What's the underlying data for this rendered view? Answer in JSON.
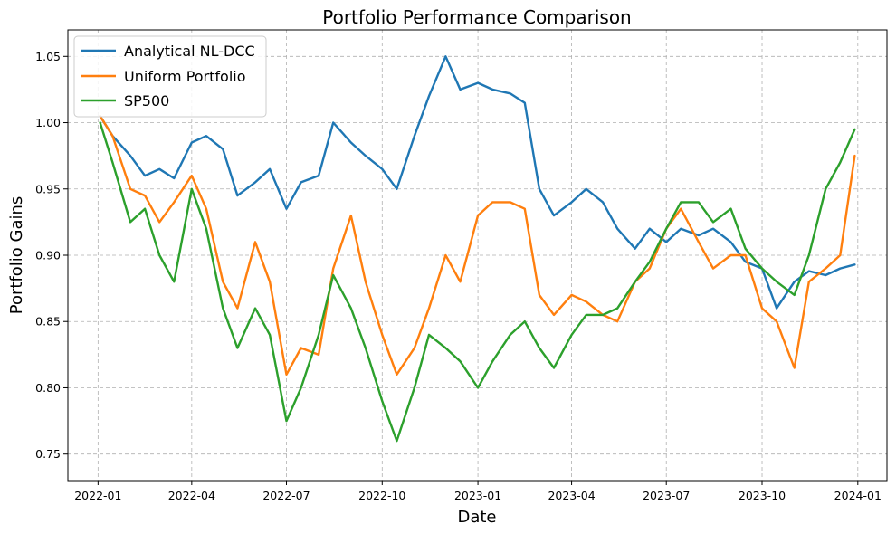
{
  "chart_data": {
    "type": "line",
    "title": "Portfolio Performance Comparison",
    "xlabel": "Date",
    "ylabel": "Portfolio Gains",
    "xlim": [
      "2021-12-03",
      "2024-01-29"
    ],
    "ylim": [
      0.73,
      1.07
    ],
    "grid": true,
    "legend_position": "top-left",
    "x_ticks": [
      "2022-01",
      "2022-04",
      "2022-07",
      "2022-10",
      "2023-01",
      "2023-04",
      "2023-07",
      "2023-10",
      "2024-01"
    ],
    "y_ticks": [
      "0.75",
      "0.80",
      "0.85",
      "0.90",
      "0.95",
      "1.00",
      "1.05"
    ],
    "series": [
      {
        "name": "Analytical NL-DCC",
        "color": "#1f77b4",
        "x": [
          "2022-01-03",
          "2022-01-15",
          "2022-02-01",
          "2022-02-15",
          "2022-03-01",
          "2022-03-15",
          "2022-04-01",
          "2022-04-15",
          "2022-05-01",
          "2022-05-15",
          "2022-06-01",
          "2022-06-15",
          "2022-07-01",
          "2022-07-15",
          "2022-08-01",
          "2022-08-15",
          "2022-09-01",
          "2022-09-15",
          "2022-10-01",
          "2022-10-15",
          "2022-11-01",
          "2022-11-15",
          "2022-12-01",
          "2022-12-15",
          "2023-01-01",
          "2023-01-15",
          "2023-02-01",
          "2023-02-15",
          "2023-03-01",
          "2023-03-15",
          "2023-04-01",
          "2023-04-15",
          "2023-05-01",
          "2023-05-15",
          "2023-06-01",
          "2023-06-15",
          "2023-07-01",
          "2023-07-15",
          "2023-08-01",
          "2023-08-15",
          "2023-09-01",
          "2023-09-15",
          "2023-10-01",
          "2023-10-15",
          "2023-11-01",
          "2023-11-15",
          "2023-12-01",
          "2023-12-15",
          "2023-12-29"
        ],
        "values": [
          1.005,
          0.99,
          0.975,
          0.96,
          0.965,
          0.958,
          0.985,
          0.99,
          0.98,
          0.945,
          0.955,
          0.965,
          0.935,
          0.955,
          0.96,
          1.0,
          0.985,
          0.975,
          0.965,
          0.95,
          0.99,
          1.02,
          1.05,
          1.025,
          1.03,
          1.025,
          1.022,
          1.015,
          0.95,
          0.93,
          0.94,
          0.95,
          0.94,
          0.92,
          0.905,
          0.92,
          0.91,
          0.92,
          0.915,
          0.92,
          0.91,
          0.895,
          0.89,
          0.86,
          0.88,
          0.888,
          0.885,
          0.89,
          0.893
        ]
      },
      {
        "name": "Uniform Portfolio",
        "color": "#ff7f0e",
        "x": [
          "2022-01-03",
          "2022-01-15",
          "2022-02-01",
          "2022-02-15",
          "2022-03-01",
          "2022-03-15",
          "2022-04-01",
          "2022-04-15",
          "2022-05-01",
          "2022-05-15",
          "2022-06-01",
          "2022-06-15",
          "2022-07-01",
          "2022-07-15",
          "2022-08-01",
          "2022-08-15",
          "2022-09-01",
          "2022-09-15",
          "2022-10-01",
          "2022-10-15",
          "2022-11-01",
          "2022-11-15",
          "2022-12-01",
          "2022-12-15",
          "2023-01-01",
          "2023-01-15",
          "2023-02-01",
          "2023-02-15",
          "2023-03-01",
          "2023-03-15",
          "2023-04-01",
          "2023-04-15",
          "2023-05-01",
          "2023-05-15",
          "2023-06-01",
          "2023-06-15",
          "2023-07-01",
          "2023-07-15",
          "2023-08-01",
          "2023-08-15",
          "2023-09-01",
          "2023-09-15",
          "2023-10-01",
          "2023-10-15",
          "2023-11-01",
          "2023-11-15",
          "2023-12-01",
          "2023-12-15",
          "2023-12-29"
        ],
        "values": [
          1.005,
          0.99,
          0.95,
          0.945,
          0.925,
          0.94,
          0.96,
          0.935,
          0.88,
          0.86,
          0.91,
          0.88,
          0.81,
          0.83,
          0.825,
          0.89,
          0.93,
          0.88,
          0.84,
          0.81,
          0.83,
          0.86,
          0.9,
          0.88,
          0.93,
          0.94,
          0.94,
          0.935,
          0.87,
          0.855,
          0.87,
          0.865,
          0.855,
          0.85,
          0.88,
          0.89,
          0.92,
          0.935,
          0.91,
          0.89,
          0.9,
          0.9,
          0.86,
          0.85,
          0.815,
          0.88,
          0.89,
          0.9,
          0.975
        ]
      },
      {
        "name": "SP500",
        "color": "#2ca02c",
        "x": [
          "2022-01-03",
          "2022-01-15",
          "2022-02-01",
          "2022-02-15",
          "2022-03-01",
          "2022-03-15",
          "2022-04-01",
          "2022-04-15",
          "2022-05-01",
          "2022-05-15",
          "2022-06-01",
          "2022-06-15",
          "2022-07-01",
          "2022-07-15",
          "2022-08-01",
          "2022-08-15",
          "2022-09-01",
          "2022-09-15",
          "2022-10-01",
          "2022-10-15",
          "2022-11-01",
          "2022-11-15",
          "2022-12-01",
          "2022-12-15",
          "2023-01-01",
          "2023-01-15",
          "2023-02-01",
          "2023-02-15",
          "2023-03-01",
          "2023-03-15",
          "2023-04-01",
          "2023-04-15",
          "2023-05-01",
          "2023-05-15",
          "2023-06-01",
          "2023-06-15",
          "2023-07-01",
          "2023-07-15",
          "2023-08-01",
          "2023-08-15",
          "2023-09-01",
          "2023-09-15",
          "2023-10-01",
          "2023-10-15",
          "2023-11-01",
          "2023-11-15",
          "2023-12-01",
          "2023-12-15",
          "2023-12-29"
        ],
        "values": [
          1.0,
          0.97,
          0.925,
          0.935,
          0.9,
          0.88,
          0.95,
          0.92,
          0.86,
          0.83,
          0.86,
          0.84,
          0.775,
          0.8,
          0.84,
          0.885,
          0.86,
          0.83,
          0.79,
          0.76,
          0.8,
          0.84,
          0.83,
          0.82,
          0.8,
          0.82,
          0.84,
          0.85,
          0.83,
          0.815,
          0.84,
          0.855,
          0.855,
          0.86,
          0.88,
          0.895,
          0.92,
          0.94,
          0.94,
          0.925,
          0.935,
          0.905,
          0.89,
          0.88,
          0.87,
          0.9,
          0.95,
          0.97,
          0.995
        ]
      }
    ]
  }
}
